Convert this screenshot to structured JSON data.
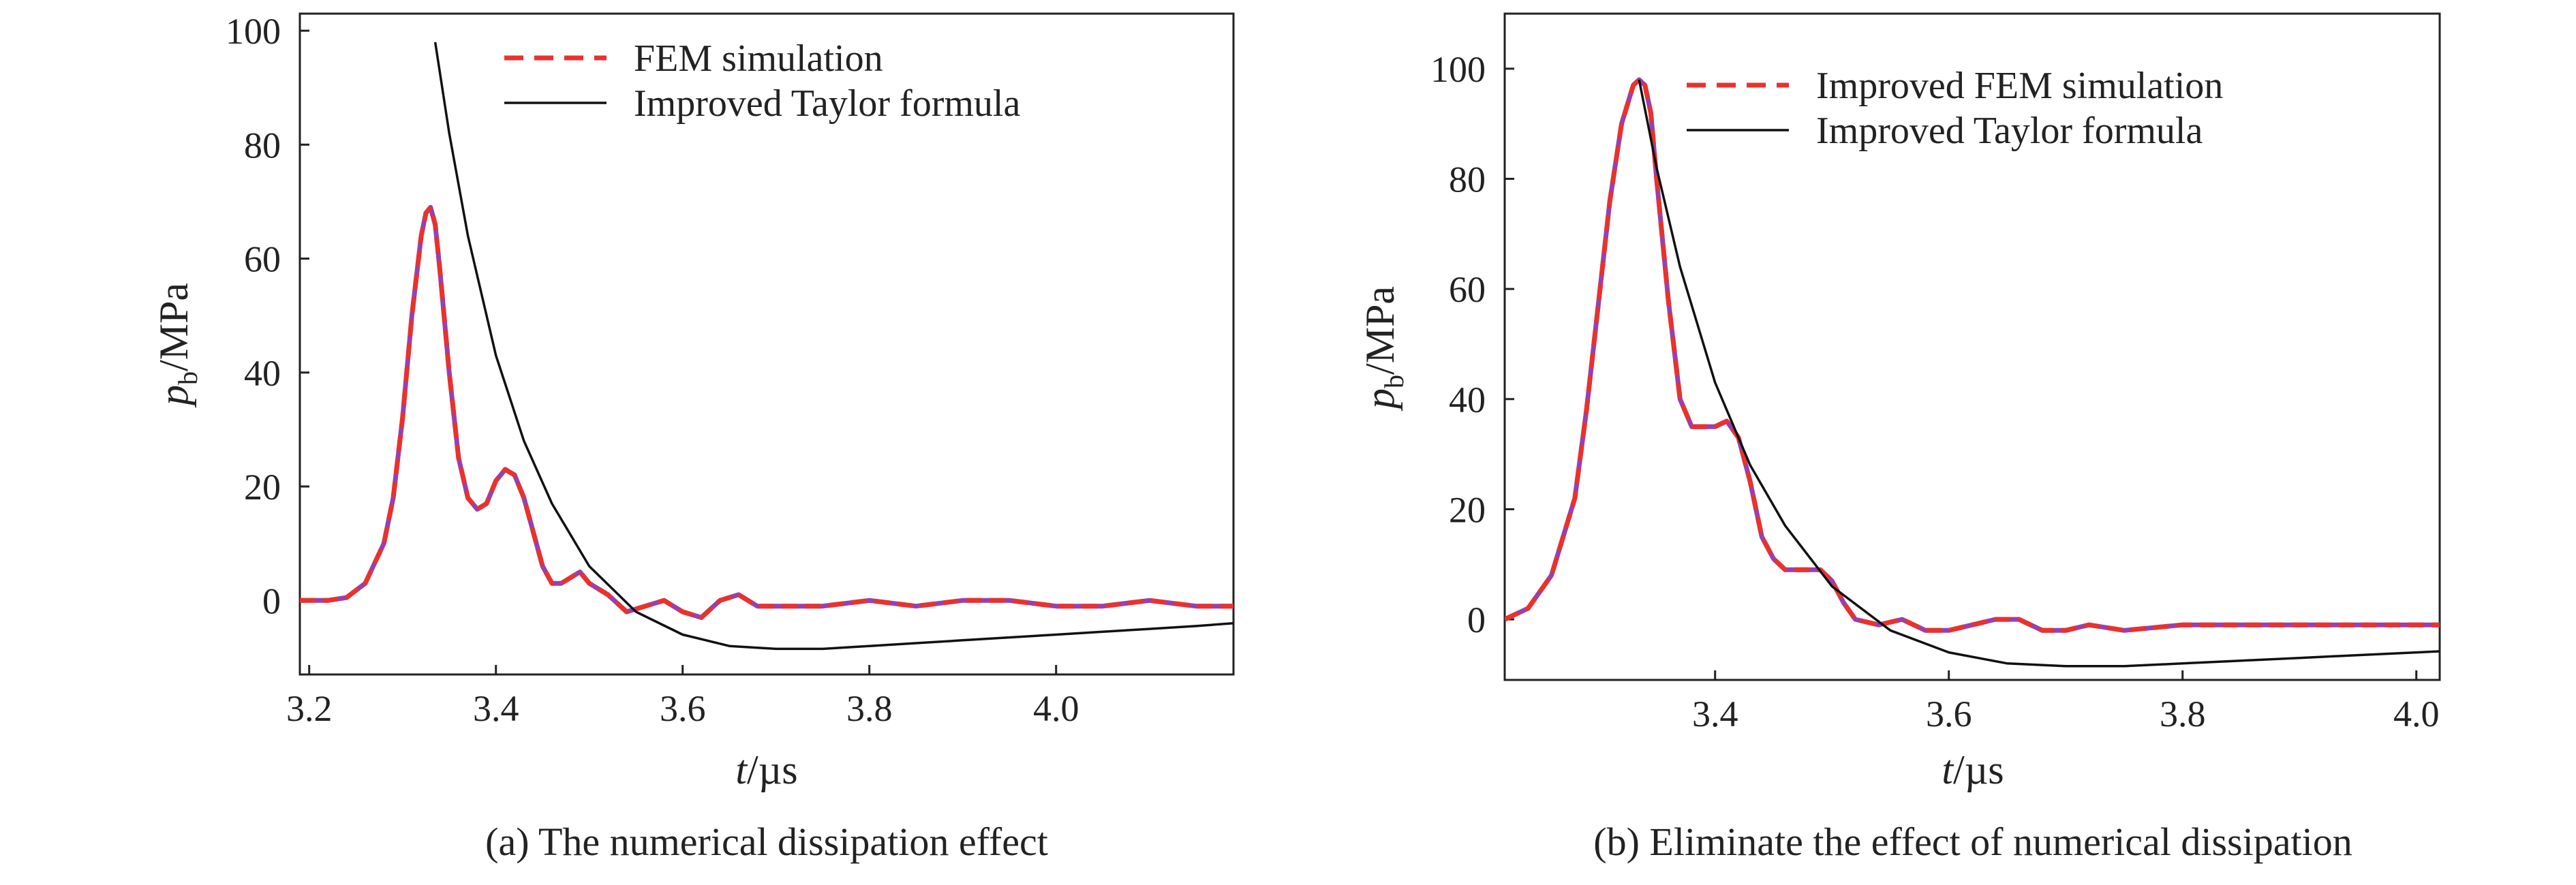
{
  "chart_data": [
    {
      "type": "line",
      "caption": "(a) The numerical dissipation effect",
      "xlabel_var": "t",
      "xlabel_unit": "/µs",
      "ylabel_var": "p",
      "ylabel_sub": "b",
      "ylabel_unit": "/MPa",
      "xlim": [
        3.19,
        4.19
      ],
      "ylim": [
        -13,
        103
      ],
      "xticks": [
        3.2,
        3.4,
        3.6,
        3.8,
        4.0
      ],
      "xtick_labels": [
        "3.2",
        "3.4",
        "3.6",
        "3.8",
        "4.0"
      ],
      "yticks": [
        0,
        20,
        40,
        60,
        80,
        100
      ],
      "ytick_labels": [
        "0",
        "20",
        "40",
        "60",
        "80",
        "100"
      ],
      "legend_position": "top-right",
      "series": [
        {
          "name": "FEM simulation",
          "style": "dashed",
          "color": "#e8322e",
          "color2": "#9c3fa8",
          "x": [
            3.19,
            3.22,
            3.24,
            3.26,
            3.28,
            3.29,
            3.3,
            3.31,
            3.32,
            3.325,
            3.33,
            3.335,
            3.34,
            3.35,
            3.36,
            3.37,
            3.38,
            3.39,
            3.4,
            3.41,
            3.42,
            3.43,
            3.44,
            3.45,
            3.46,
            3.47,
            3.48,
            3.49,
            3.5,
            3.52,
            3.54,
            3.56,
            3.58,
            3.6,
            3.62,
            3.64,
            3.66,
            3.68,
            3.7,
            3.75,
            3.8,
            3.85,
            3.9,
            3.95,
            4.0,
            4.05,
            4.1,
            4.15,
            4.19
          ],
          "y": [
            0,
            0,
            0.5,
            3,
            10,
            18,
            32,
            50,
            64,
            68,
            69,
            66,
            58,
            40,
            25,
            18,
            16,
            17,
            21,
            23,
            22,
            18,
            12,
            6,
            3,
            3,
            4,
            5,
            3,
            1,
            -2,
            -1,
            0,
            -2,
            -3,
            0,
            1,
            -1,
            -1,
            -1,
            0,
            -1,
            0,
            0,
            -1,
            -1,
            0,
            -1,
            -1
          ]
        },
        {
          "name": "Improved Taylor formula",
          "style": "solid",
          "color": "#111111",
          "x": [
            3.335,
            3.35,
            3.37,
            3.4,
            3.43,
            3.46,
            3.5,
            3.55,
            3.6,
            3.65,
            3.7,
            3.75,
            3.8,
            3.85,
            3.9,
            3.95,
            4.0,
            4.05,
            4.1,
            4.15,
            4.19
          ],
          "y": [
            98,
            82,
            64,
            43,
            28,
            17,
            6,
            -2,
            -6,
            -8,
            -8.5,
            -8.5,
            -8,
            -7.5,
            -7,
            -6.5,
            -6,
            -5.5,
            -5,
            -4.5,
            -4
          ]
        }
      ]
    },
    {
      "type": "line",
      "caption": "(b) Eliminate the effect of numerical dissipation",
      "xlabel_var": "t",
      "xlabel_unit": "/µs",
      "ylabel_var": "p",
      "ylabel_sub": "b",
      "ylabel_unit": "/MPa",
      "xlim": [
        3.22,
        4.02
      ],
      "ylim": [
        -11,
        110
      ],
      "xticks": [
        3.4,
        3.6,
        3.8,
        4.0
      ],
      "xtick_labels": [
        "3.4",
        "3.6",
        "3.8",
        "4.0"
      ],
      "yticks": [
        0,
        20,
        40,
        60,
        80,
        100
      ],
      "ytick_labels": [
        "0",
        "20",
        "40",
        "60",
        "80",
        "100"
      ],
      "legend_position": "top-right",
      "series": [
        {
          "name": "Improved FEM simulation",
          "style": "dashed",
          "color": "#e8322e",
          "color2": "#9c3fa8",
          "x": [
            3.22,
            3.24,
            3.26,
            3.28,
            3.29,
            3.3,
            3.31,
            3.32,
            3.33,
            3.335,
            3.34,
            3.345,
            3.35,
            3.36,
            3.37,
            3.38,
            3.39,
            3.4,
            3.41,
            3.42,
            3.43,
            3.44,
            3.45,
            3.46,
            3.47,
            3.48,
            3.49,
            3.5,
            3.51,
            3.52,
            3.54,
            3.56,
            3.58,
            3.6,
            3.62,
            3.64,
            3.66,
            3.68,
            3.7,
            3.72,
            3.75,
            3.8,
            3.85,
            3.9,
            3.95,
            4.0,
            4.02
          ],
          "y": [
            0,
            2,
            8,
            22,
            38,
            57,
            76,
            90,
            97,
            98,
            97,
            92,
            80,
            58,
            40,
            35,
            35,
            35,
            36,
            33,
            25,
            15,
            11,
            9,
            9,
            9,
            9,
            7,
            3,
            0,
            -1,
            0,
            -2,
            -2,
            -1,
            0,
            0,
            -2,
            -2,
            -1,
            -2,
            -1,
            -1,
            -1,
            -1,
            -1,
            -1
          ]
        },
        {
          "name": "Improved Taylor formula",
          "style": "solid",
          "color": "#111111",
          "x": [
            3.335,
            3.35,
            3.37,
            3.4,
            3.43,
            3.46,
            3.5,
            3.55,
            3.6,
            3.65,
            3.7,
            3.75,
            3.8,
            3.85,
            3.9,
            3.95,
            4.0,
            4.02
          ],
          "y": [
            98,
            82,
            64,
            43,
            28,
            17,
            6,
            -2,
            -6,
            -8,
            -8.5,
            -8.5,
            -8,
            -7.5,
            -7,
            -6.5,
            -6,
            -5.8
          ]
        }
      ]
    }
  ]
}
